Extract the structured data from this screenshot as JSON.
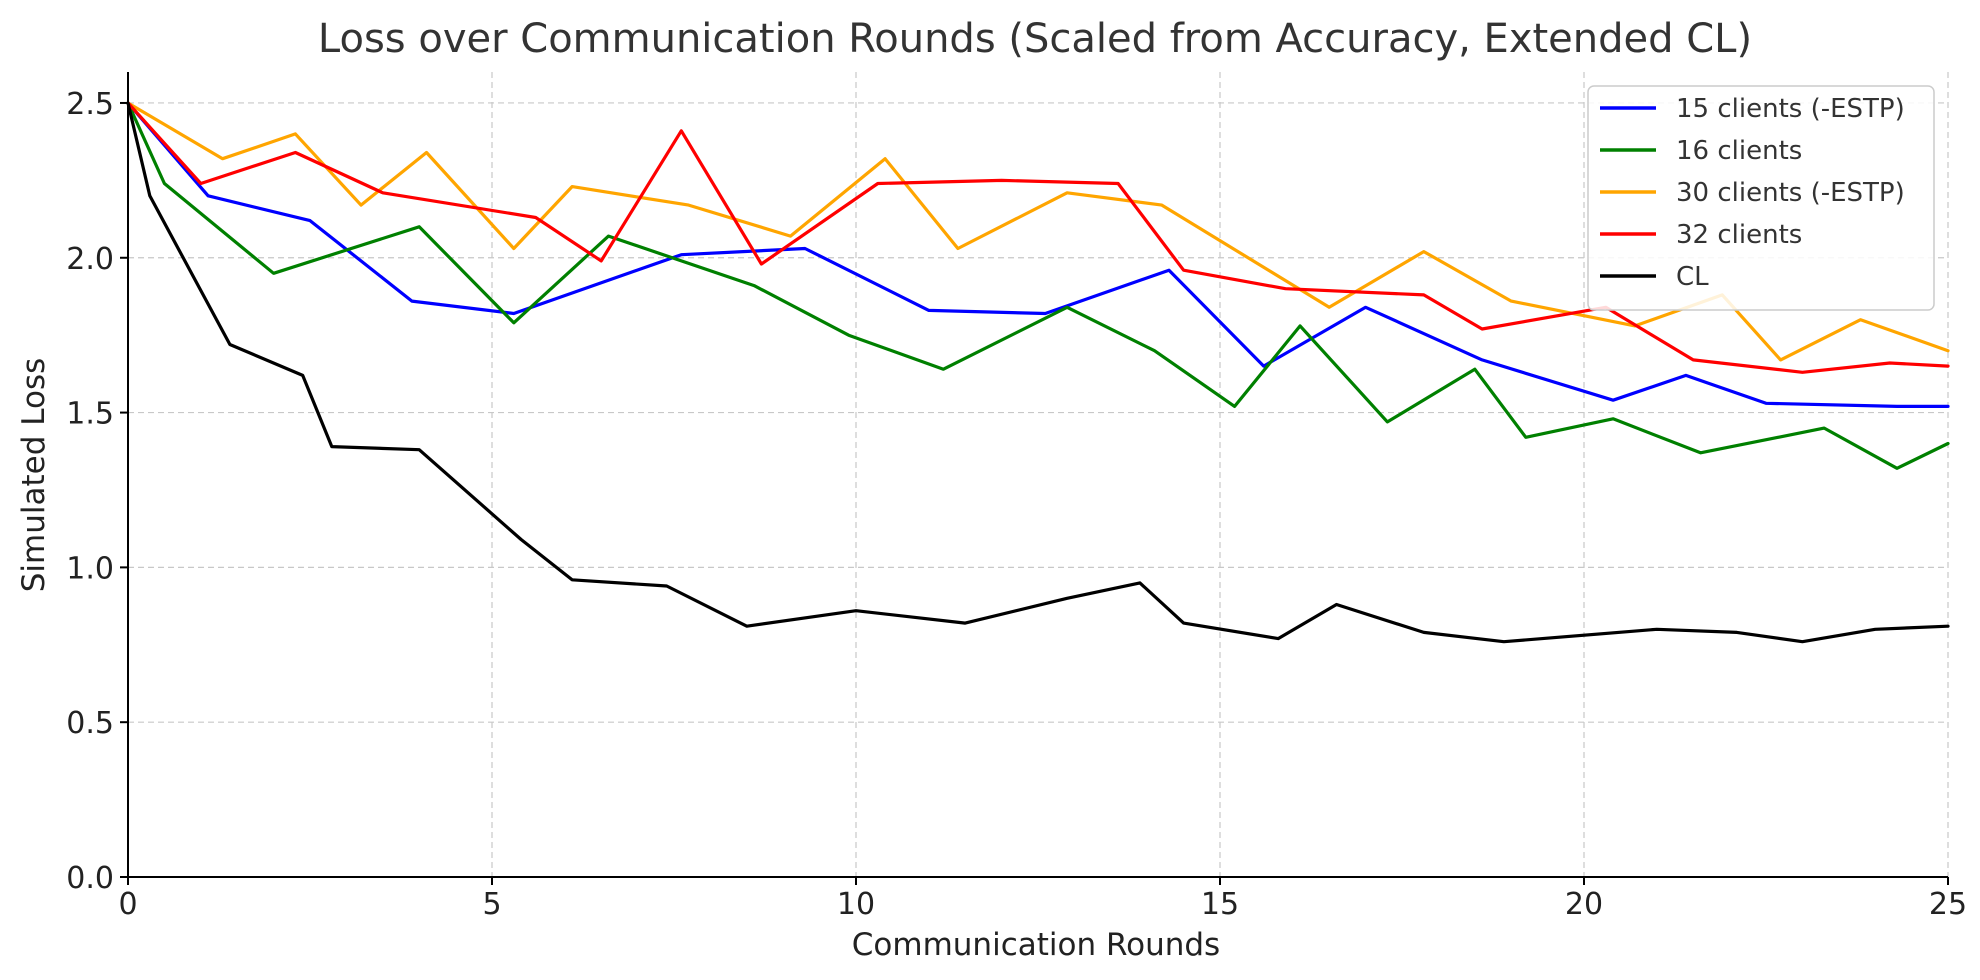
{
  "chart_data": {
    "type": "line",
    "title": "Loss over Communication Rounds (Scaled from Accuracy, Extended CL)",
    "xlabel": "Communication Rounds",
    "ylabel": "Simulated Loss",
    "xlim": [
      0,
      25
    ],
    "ylim": [
      0,
      2.6
    ],
    "xticks": [
      0,
      5,
      10,
      15,
      20,
      25
    ],
    "yticks": [
      0.0,
      0.5,
      1.0,
      1.5,
      2.0,
      2.5
    ],
    "xtick_labels": [
      "0",
      "5",
      "10",
      "15",
      "20",
      "25"
    ],
    "ytick_labels": [
      "0.0",
      "0.5",
      "1.0",
      "1.5",
      "2.0",
      "2.5"
    ],
    "grid": true,
    "legend_position": "top-right",
    "series": [
      {
        "name": "15 clients (-ESTP)",
        "color": "#0000ff",
        "x": [
          0,
          1.1,
          2.5,
          3.9,
          5.3,
          7.6,
          9.3,
          11.0,
          12.6,
          14.3,
          15.6,
          17.0,
          18.6,
          20.4,
          21.4,
          22.5,
          24.3,
          25
        ],
        "y": [
          2.5,
          2.2,
          2.12,
          1.86,
          1.82,
          2.01,
          2.03,
          1.83,
          1.82,
          1.96,
          1.65,
          1.84,
          1.67,
          1.54,
          1.62,
          1.53,
          1.52,
          1.52
        ]
      },
      {
        "name": "16 clients",
        "color": "#008000",
        "x": [
          0,
          0.5,
          2.0,
          4.0,
          5.3,
          6.6,
          8.6,
          9.9,
          11.2,
          12.9,
          14.1,
          15.2,
          16.1,
          17.3,
          18.5,
          19.2,
          20.4,
          21.6,
          23.3,
          24.3,
          25
        ],
        "y": [
          2.5,
          2.24,
          1.95,
          2.1,
          1.79,
          2.07,
          1.91,
          1.75,
          1.64,
          1.84,
          1.7,
          1.52,
          1.78,
          1.47,
          1.64,
          1.42,
          1.48,
          1.37,
          1.45,
          1.32,
          1.4
        ]
      },
      {
        "name": "30 clients (-ESTP)",
        "color": "#ffa500",
        "x": [
          0,
          1.3,
          2.3,
          3.2,
          4.1,
          5.3,
          6.1,
          7.7,
          9.1,
          10.4,
          11.4,
          12.9,
          14.2,
          16.5,
          17.8,
          19.0,
          20.7,
          21.9,
          22.7,
          23.8,
          25
        ],
        "y": [
          2.5,
          2.32,
          2.4,
          2.17,
          2.34,
          2.03,
          2.23,
          2.17,
          2.07,
          2.32,
          2.03,
          2.21,
          2.17,
          1.84,
          2.02,
          1.86,
          1.78,
          1.88,
          1.67,
          1.8,
          1.7
        ]
      },
      {
        "name": "32 clients",
        "color": "#ff0000",
        "x": [
          0,
          1.0,
          2.3,
          3.5,
          5.6,
          6.5,
          7.6,
          8.7,
          10.3,
          12.0,
          13.6,
          14.5,
          15.9,
          17.8,
          18.6,
          20.3,
          21.5,
          23.0,
          24.2,
          25
        ],
        "y": [
          2.5,
          2.24,
          2.34,
          2.21,
          2.13,
          1.99,
          2.41,
          1.98,
          2.24,
          2.25,
          2.24,
          1.96,
          1.9,
          1.88,
          1.77,
          1.84,
          1.67,
          1.63,
          1.66,
          1.65
        ]
      },
      {
        "name": "CL",
        "color": "#000000",
        "x": [
          0,
          0.3,
          1.4,
          2.4,
          2.8,
          4.0,
          5.4,
          6.1,
          7.4,
          8.5,
          10.0,
          11.5,
          12.9,
          13.9,
          14.5,
          15.8,
          16.6,
          17.8,
          18.9,
          21.0,
          22.1,
          23.0,
          24.0,
          25
        ],
        "y": [
          2.5,
          2.2,
          1.72,
          1.62,
          1.39,
          1.38,
          1.09,
          0.96,
          0.94,
          0.81,
          0.86,
          0.82,
          0.9,
          0.95,
          0.82,
          0.77,
          0.88,
          0.79,
          0.76,
          0.8,
          0.79,
          0.76,
          0.8,
          0.81
        ]
      }
    ]
  }
}
